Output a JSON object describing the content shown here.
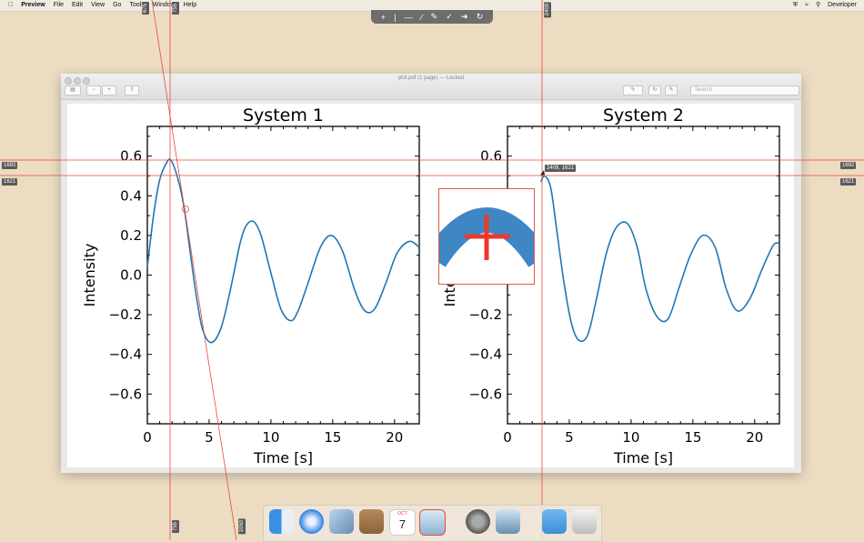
{
  "menubar": {
    "apple_icon": "apple-icon",
    "app_name": "Preview",
    "items": [
      "File",
      "Edit",
      "View",
      "Go",
      "Tools",
      "Window",
      "Help"
    ],
    "status_icons": [
      "shield-icon",
      "wifi-icon",
      "search-icon"
    ],
    "user": "Developer"
  },
  "annotation_toolbar": {
    "tools": [
      "crosshair-icon",
      "vline-icon",
      "hline-icon",
      "line-icon",
      "pen-icon",
      "check-icon",
      "arrow-icon",
      "redo-icon"
    ]
  },
  "window": {
    "title": "plot.pdf (1 page) — Locked",
    "search_placeholder": "Search"
  },
  "chart_data": [
    {
      "type": "line",
      "title": "System 1",
      "xlabel": "Time [s]",
      "ylabel": "Intensity",
      "xlim": [
        0,
        22
      ],
      "ylim": [
        -0.75,
        0.75
      ],
      "xticks": [
        "0",
        "5",
        "10",
        "15",
        "20"
      ],
      "yticks": [
        "0.6",
        "0.4",
        "0.2",
        "0.0",
        "−0.2",
        "−0.4",
        "−0.6"
      ],
      "series": [
        {
          "color": "#1f77b4",
          "x": [
            0,
            0.5,
            1,
            1.5,
            1.9,
            2.5,
            3,
            3.5,
            4,
            4.5,
            5.2,
            6,
            6.8,
            7.5,
            8,
            8.6,
            9.2,
            10,
            10.8,
            11.6,
            12.2,
            13,
            14,
            14.9,
            15.8,
            16.8,
            17.6,
            18.4,
            19.3,
            20.2,
            21.2,
            22
          ],
          "y": [
            0.04,
            0.3,
            0.48,
            0.56,
            0.58,
            0.48,
            0.33,
            0.1,
            -0.12,
            -0.28,
            -0.34,
            -0.26,
            -0.05,
            0.16,
            0.25,
            0.27,
            0.2,
            0.01,
            -0.17,
            -0.23,
            -0.18,
            -0.04,
            0.14,
            0.2,
            0.12,
            -0.08,
            -0.18,
            -0.17,
            -0.04,
            0.11,
            0.17,
            0.14
          ]
        }
      ]
    },
    {
      "type": "line",
      "title": "System 2",
      "xlabel": "Time [s]",
      "ylabel": "Intensity",
      "xlim": [
        0,
        22
      ],
      "ylim": [
        -0.75,
        0.75
      ],
      "xticks": [
        "0",
        "5",
        "10",
        "15",
        "20"
      ],
      "yticks": [
        "0.6",
        "0.4",
        "0.2",
        "0.0",
        "−0.2",
        "−0.4",
        "−0.6"
      ],
      "series": [
        {
          "color": "#1f77b4",
          "x": [
            2.7,
            3,
            3.5,
            4,
            4.6,
            5.2,
            5.8,
            6.5,
            7.2,
            8,
            8.8,
            9.7,
            10.5,
            11.2,
            12.1,
            13,
            13.9,
            14.8,
            15.8,
            16.8,
            17.7,
            18.6,
            19.6,
            20.6,
            21.5,
            22
          ],
          "y": [
            0.47,
            0.5,
            0.44,
            0.22,
            -0.05,
            -0.25,
            -0.33,
            -0.3,
            -0.12,
            0.11,
            0.24,
            0.26,
            0.14,
            -0.07,
            -0.21,
            -0.22,
            -0.06,
            0.1,
            0.2,
            0.14,
            -0.07,
            -0.18,
            -0.12,
            0.03,
            0.15,
            0.16
          ]
        }
      ]
    }
  ],
  "measurement": {
    "line_color": "#e8493a",
    "v_top_1": "675",
    "v_top_2": "755",
    "v_top_3": "2409",
    "v_bottom_1": "755",
    "v_bottom_2": "1050",
    "v_bottom_3": "2409",
    "h_left_1": "1692",
    "h_left_2": "1621",
    "h_right_1": "1692",
    "h_right_2": "1621",
    "cursor_readout": "2409, 1621"
  },
  "dock": {
    "apps": [
      "finder-icon",
      "safari-icon",
      "mail-icon",
      "notes-icon",
      "calendar-icon",
      "screen-ruler-icon",
      "system-preferences-icon",
      "preview-icon",
      "downloads-folder-icon",
      "trash-icon"
    ],
    "calendar_month": "OCT",
    "calendar_day": "7"
  }
}
